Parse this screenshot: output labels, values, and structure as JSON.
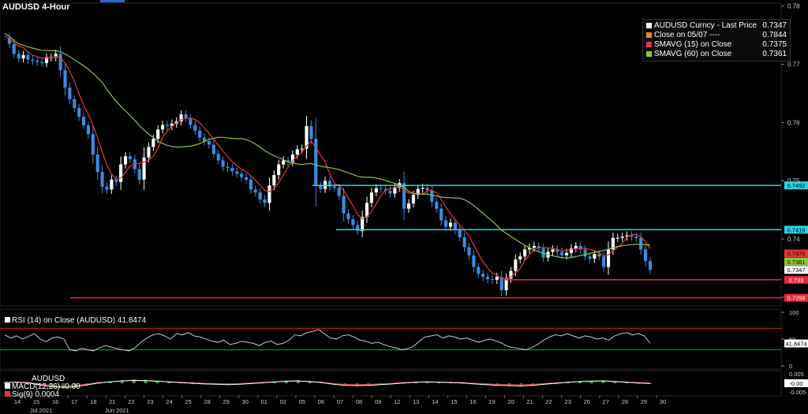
{
  "title": "AUDUSD 4-Hour",
  "legend": [
    {
      "label": "AUDUSD Curncy - Last Price",
      "value": "0.7347",
      "color": "#ffffff"
    },
    {
      "label": "Close on 05/07 ----",
      "value": "0.7844",
      "color": "#e58a1f"
    },
    {
      "label": "SMAVG (15)  on Close",
      "value": "0.7375",
      "color": "#e23b3b"
    },
    {
      "label": "SMAVG (60)  on Close",
      "value": "0.7361",
      "color": "#8dc63f"
    }
  ],
  "rsi_label": "RSI (14)  on Close (AUDUSD) 41.8474",
  "macd_labels": {
    "name": "AUDUSD",
    "macd": "MACD(12,26) -0.00",
    "sig": "Sig(9)       0.0004"
  },
  "colors": {
    "candle_up": "#ffffff",
    "candle_down": "#3b8de0",
    "sma15": "#e23b3b",
    "sma60": "#8dc63f",
    "support": "#e8293b",
    "resistance": "#2fd3e0"
  },
  "chart_data": {
    "type": "candlestick",
    "title": "AUDUSD 4-Hour",
    "y_ticks": [
      "0.78",
      "0.77",
      "0.76",
      "0.75",
      "0.74",
      "0.73"
    ],
    "ylim": [
      0.7285,
      0.7805
    ],
    "x_ticks": [
      "14",
      "15",
      "16",
      "17",
      "18",
      "21",
      "22",
      "23",
      "24",
      "25",
      "28",
      "29",
      "30",
      "01",
      "02",
      "05",
      "06",
      "07",
      "08",
      "09",
      "12",
      "13",
      "14",
      "15",
      "16",
      "19",
      "20",
      "21",
      "22",
      "23",
      "26",
      "27",
      "28",
      "29",
      "30"
    ],
    "x_month_labels": [
      {
        "label": "Jun 2021",
        "after_tick": "21"
      },
      {
        "label": "Jul 2021",
        "after_tick": "15"
      }
    ],
    "price_path": [
      0.7745,
      0.7735,
      0.7718,
      0.771,
      0.7716,
      0.7708,
      0.7706,
      0.7704,
      0.7702,
      0.7712,
      0.7712,
      0.7718,
      0.769,
      0.766,
      0.764,
      0.7625,
      0.761,
      0.7595,
      0.758,
      0.7545,
      0.7515,
      0.749,
      0.7485,
      0.7502,
      0.7498,
      0.7528,
      0.7542,
      0.7537,
      0.752,
      0.7502,
      0.754,
      0.7558,
      0.7572,
      0.7588,
      0.7596,
      0.7594,
      0.7598,
      0.7602,
      0.7614,
      0.7608,
      0.7596,
      0.7586,
      0.7574,
      0.7568,
      0.7562,
      0.7546,
      0.7535,
      0.7524,
      0.7522,
      0.7516,
      0.7512,
      0.7506,
      0.7502,
      0.7485,
      0.748,
      0.7468,
      0.7462,
      0.7492,
      0.751,
      0.7528,
      0.7535,
      0.7532,
      0.7545,
      0.7554,
      0.7555,
      0.7594,
      0.7572,
      0.7492,
      0.7486,
      0.75,
      0.749,
      0.7488,
      0.7474,
      0.7444,
      0.7434,
      0.7424,
      0.7414,
      0.7438,
      0.7462,
      0.748,
      0.7487,
      0.7486,
      0.7483,
      0.7478,
      0.7488,
      0.7496,
      0.7452,
      0.7461,
      0.7476,
      0.7486,
      0.7488,
      0.7484,
      0.7464,
      0.7452,
      0.7432,
      0.7421,
      0.7428,
      0.7415,
      0.7403,
      0.7386,
      0.7372,
      0.7352,
      0.734,
      0.7335,
      0.7331,
      0.733,
      0.7335,
      0.7312,
      0.7332,
      0.7345,
      0.7365,
      0.737,
      0.7382,
      0.7385,
      0.7388,
      0.7384,
      0.7368,
      0.7378,
      0.7382,
      0.7378,
      0.7372,
      0.7376,
      0.7384,
      0.7388,
      0.7382,
      0.737,
      0.7366,
      0.7374,
      0.737,
      0.7352,
      0.7382,
      0.7402,
      0.7402,
      0.7404,
      0.7406,
      0.7404,
      0.7402,
      0.7382,
      0.7362,
      0.7347
    ],
    "sma15_last": 0.7375,
    "sma60_last": 0.7361,
    "last_price": 0.7347,
    "horizontal_lines": [
      {
        "label": "0.7492",
        "value": 0.7492,
        "color": "#2fd3e0",
        "from_fraction": 0.4
      },
      {
        "label": "0.7416",
        "value": 0.7416,
        "color": "#2fd3e0",
        "from_fraction": 0.43
      },
      {
        "label": "0.733",
        "value": 0.733,
        "color": "#e8293b",
        "from_fraction": 0.645
      },
      {
        "label": "0.7299",
        "value": 0.7299,
        "color": "#e8293b",
        "from_fraction": 0.09
      }
    ],
    "price_tags": [
      {
        "label": "0.7375",
        "value": 0.7375,
        "color": "#e23b3b"
      },
      {
        "label": "0.7361",
        "value": 0.7361,
        "color": "#8dc63f"
      },
      {
        "label": "0.7347",
        "value": 0.7347,
        "color": "#ffffff"
      }
    ],
    "rsi": {
      "period": 14,
      "last": 41.8474,
      "last_label": "41.8474",
      "ticks": [
        "100",
        "50",
        "0"
      ],
      "levels": [
        70,
        30
      ],
      "path": [
        58,
        52,
        56,
        50,
        55,
        60,
        50,
        45,
        52,
        54,
        50,
        30,
        28,
        33,
        30,
        28,
        34,
        38,
        35,
        32,
        30,
        28,
        34,
        44,
        52,
        58,
        60,
        56,
        50,
        60,
        58,
        62,
        56,
        54,
        50,
        46,
        44,
        48,
        40,
        42,
        46,
        44,
        42,
        38,
        44,
        46,
        40,
        42,
        48,
        58,
        56,
        62,
        64,
        68,
        60,
        52,
        50,
        56,
        58,
        54,
        48,
        46,
        42,
        44,
        40,
        36,
        34,
        30,
        32,
        36,
        46,
        54,
        56,
        58,
        52,
        56,
        54,
        50,
        52,
        48,
        44,
        48,
        50,
        46,
        42,
        36,
        34,
        32,
        30,
        34,
        40,
        48,
        54,
        58,
        56,
        60,
        56,
        52,
        56,
        54,
        50,
        52,
        48,
        56,
        60,
        62,
        58,
        60,
        56,
        42
      ]
    },
    "macd": {
      "ticks": [
        "0.005",
        "-0.005"
      ],
      "last_label": "-0.00",
      "hist": [
        0.0004,
        0.0006,
        0.0003,
        -0.001,
        -0.002,
        -0.0025,
        -0.002,
        -0.001,
        0.0002,
        0.0008,
        0.0014,
        0.0018,
        0.0016,
        0.0012,
        0.0008,
        0.0004,
        0.0,
        -0.0004,
        -0.0006,
        -0.0008,
        -0.0006,
        -0.0002,
        0.0003,
        0.0008,
        0.0012,
        0.0014,
        0.001,
        0.0004,
        -0.0006,
        -0.0012,
        -0.0014,
        -0.0012,
        -0.0008,
        -0.0004,
        0.0002,
        0.0006,
        0.0008,
        0.0006,
        0.0004,
        0.0002,
        -0.0004,
        -0.0008,
        -0.0012,
        -0.0014,
        -0.0016,
        -0.0012,
        -0.0006,
        0.0,
        0.0006,
        0.001,
        0.0012,
        0.0014,
        0.001,
        0.0006,
        0.0002,
        -0.0002
      ]
    }
  }
}
